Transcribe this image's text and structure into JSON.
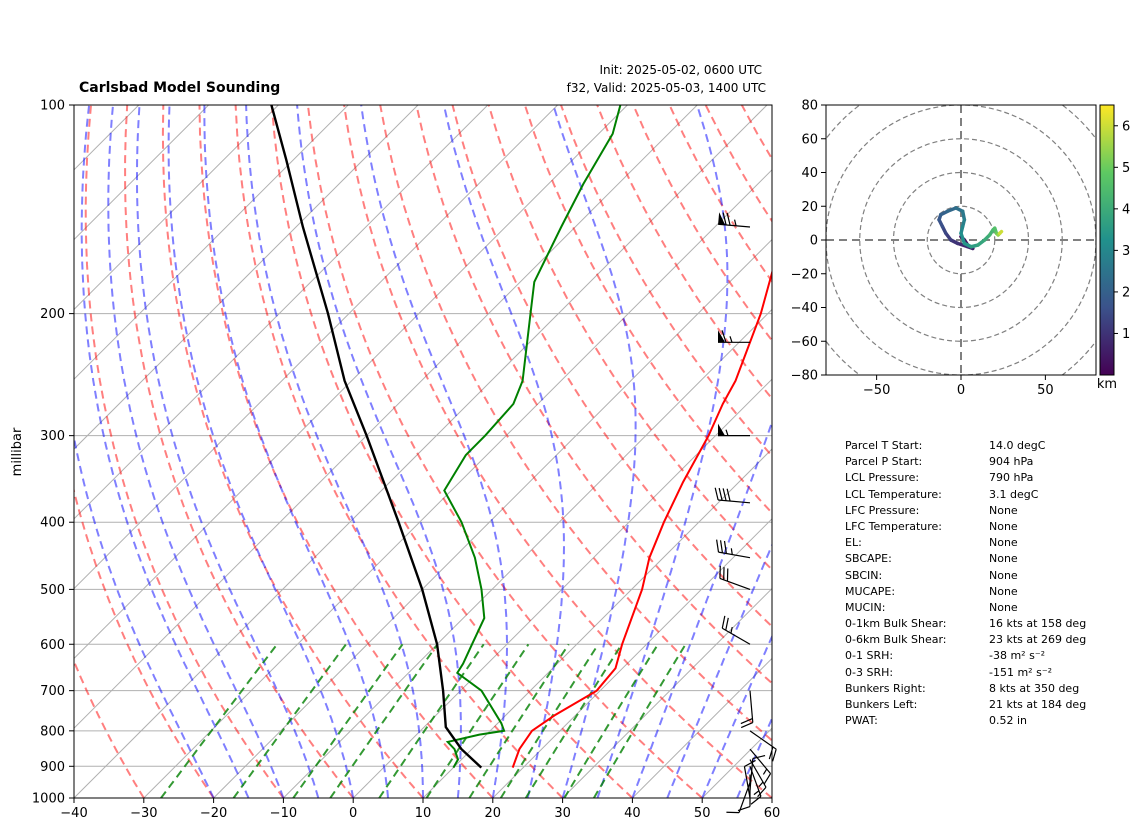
{
  "header": {
    "title": "Carlsbad Model Sounding",
    "init": "Init: 2025-05-02, 0600 UTC",
    "valid": "f32, Valid: 2025-05-03, 1400 UTC"
  },
  "skewt": {
    "ylabel": "millibar",
    "pressure_ticks": [
      100,
      200,
      300,
      400,
      500,
      600,
      700,
      800,
      900,
      1000
    ],
    "pressure_tick_labels": [
      "100",
      "200",
      "300",
      "400",
      "500",
      "600",
      "700",
      "800",
      "900",
      "1000"
    ],
    "temp_ticks": [
      -40,
      -30,
      -20,
      -10,
      0,
      10,
      20,
      30,
      40,
      50,
      60
    ],
    "temp_tick_labels": [
      "−40",
      "−30",
      "−20",
      "−10",
      "0",
      "10",
      "20",
      "30",
      "40",
      "50",
      "60"
    ]
  },
  "hodograph": {
    "x_tick_labels": [
      "−50",
      "0",
      "50"
    ],
    "y_tick_labels": [
      "80",
      "60",
      "40",
      "20",
      "0",
      "−20",
      "−40",
      "−60",
      "−80"
    ],
    "colorbar_ticks": [
      "6",
      "5",
      "4",
      "3",
      "2",
      "1"
    ],
    "colorbar_label": "km"
  },
  "stats": [
    {
      "label": "Parcel T Start:",
      "value": "14.0 degC"
    },
    {
      "label": "Parcel P Start:",
      "value": "904 hPa"
    },
    {
      "label": "LCL Pressure:",
      "value": "790 hPa"
    },
    {
      "label": "LCL Temperature:",
      "value": "3.1 degC"
    },
    {
      "label": "LFC Pressure:",
      "value": "None"
    },
    {
      "label": "LFC Temperature:",
      "value": "None"
    },
    {
      "label": "EL:",
      "value": "None"
    },
    {
      "label": "SBCAPE:",
      "value": "None"
    },
    {
      "label": "SBCIN:",
      "value": "None"
    },
    {
      "label": "MUCAPE:",
      "value": "None"
    },
    {
      "label": "MUCIN:",
      "value": "None"
    },
    {
      "label": "0-1km Bulk Shear:",
      "value": "16 kts at 158 deg"
    },
    {
      "label": "0-6km Bulk Shear:",
      "value": "23 kts at 269 deg"
    },
    {
      "label": "0-1 SRH:",
      "value": "-38 m² s⁻²"
    },
    {
      "label": "0-3 SRH:",
      "value": "-151 m² s⁻²"
    },
    {
      "label": "Bunkers Right:",
      "value": "8 kts at 350 deg"
    },
    {
      "label": "Bunkers Left:",
      "value": "21 kts at 184 deg"
    },
    {
      "label": "PWAT:",
      "value": "0.52 in"
    }
  ],
  "chart_data": [
    {
      "type": "line",
      "ylim": [
        1000,
        100
      ],
      "xlim": [
        -40,
        60
      ],
      "yscale": "log",
      "skew": true,
      "grid": true,
      "series": [
        {
          "id": "temperature",
          "color": "#ff0000",
          "points": [
            [
              904,
              18.5
            ],
            [
              850,
              16.8
            ],
            [
              800,
              16.0
            ],
            [
              760,
              17.0
            ],
            [
              700,
              19.5
            ],
            [
              650,
              19.0
            ],
            [
              600,
              16.5
            ],
            [
              500,
              11.5
            ],
            [
              450,
              8.0
            ],
            [
              400,
              5.0
            ],
            [
              350,
              2.0
            ],
            [
              300,
              -1.0
            ],
            [
              270,
              -3.5
            ],
            [
              250,
              -5.0
            ],
            [
              200,
              -11.0
            ],
            [
              150,
              -20.0
            ],
            [
              120,
              -29.0
            ],
            [
              100,
              -37.0
            ]
          ]
        },
        {
          "id": "dewpoint",
          "color": "#008000",
          "points": [
            [
              904,
              10.0
            ],
            [
              880,
              9.5
            ],
            [
              850,
              7.5
            ],
            [
              830,
              5.5
            ],
            [
              810,
              9.0
            ],
            [
              800,
              12.0
            ],
            [
              780,
              10.5
            ],
            [
              700,
              3.0
            ],
            [
              660,
              -3.0
            ],
            [
              640,
              -3.5
            ],
            [
              600,
              -5.0
            ],
            [
              550,
              -7.0
            ],
            [
              500,
              -11.5
            ],
            [
              450,
              -17.0
            ],
            [
              400,
              -24.0
            ],
            [
              360,
              -31.0
            ],
            [
              320,
              -33.0
            ],
            [
              300,
              -33.0
            ],
            [
              270,
              -33.5
            ],
            [
              250,
              -35.5
            ],
            [
              200,
              -44.0
            ],
            [
              180,
              -48.0
            ],
            [
              150,
              -52.0
            ],
            [
              130,
              -55.0
            ],
            [
              110,
              -58.0
            ],
            [
              100,
              -61.0
            ]
          ]
        },
        {
          "id": "parcel",
          "color": "#000000",
          "points": [
            [
              904,
              14.0
            ],
            [
              850,
              8.5
            ],
            [
              790,
              3.1
            ],
            [
              700,
              -2.5
            ],
            [
              600,
              -10.0
            ],
            [
              500,
              -20.0
            ],
            [
              400,
              -33.0
            ],
            [
              300,
              -50.0
            ],
            [
              250,
              -61.0
            ],
            [
              200,
              -73.0
            ],
            [
              150,
              -89.0
            ],
            [
              120,
              -101.0
            ],
            [
              100,
              -111.0
            ]
          ]
        }
      ]
    },
    {
      "type": "line",
      "xlim": [
        -80,
        80
      ],
      "ylim": [
        -80,
        80
      ],
      "grid": false,
      "colormap": "viridis",
      "colorbar_range_km": [
        0,
        6.5
      ],
      "hodograph": [
        [
          0,
          2
        ],
        [
          2,
          0
        ],
        [
          4,
          -3
        ],
        [
          7,
          -5
        ],
        [
          4,
          -4
        ],
        [
          -2,
          -2
        ],
        [
          -6,
          0
        ],
        [
          -9,
          4
        ],
        [
          -11,
          8
        ],
        [
          -13,
          12
        ],
        [
          -12,
          15
        ],
        [
          -8,
          17
        ],
        [
          -3,
          19
        ],
        [
          1,
          17
        ],
        [
          2,
          12
        ],
        [
          1,
          8
        ],
        [
          0,
          4
        ],
        [
          2,
          -2
        ],
        [
          6,
          -4
        ],
        [
          10,
          -3
        ],
        [
          14,
          0
        ],
        [
          17,
          3
        ],
        [
          19,
          6
        ],
        [
          20,
          7
        ],
        [
          21,
          4
        ],
        [
          22,
          3
        ],
        [
          23,
          4
        ],
        [
          24,
          5
        ]
      ],
      "heights_km": [
        0,
        0.2,
        0.4,
        0.6,
        0.8,
        1.0,
        1.2,
        1.4,
        1.6,
        1.8,
        2.0,
        2.2,
        2.4,
        2.6,
        2.8,
        3.0,
        3.2,
        3.4,
        3.6,
        3.8,
        4.0,
        4.2,
        4.4,
        4.6,
        5.0,
        5.5,
        6.0,
        6.3
      ]
    }
  ],
  "wind_barbs": [
    {
      "p": 1000,
      "speed": 10,
      "dir": 350
    },
    {
      "p": 975,
      "speed": 10,
      "dir": 5
    },
    {
      "p": 950,
      "speed": 10,
      "dir": 200
    },
    {
      "p": 925,
      "speed": 10,
      "dir": 180
    },
    {
      "p": 900,
      "speed": 15,
      "dir": 160
    },
    {
      "p": 880,
      "speed": 15,
      "dir": 150
    },
    {
      "p": 850,
      "speed": 15,
      "dir": 140
    },
    {
      "p": 800,
      "speed": 20,
      "dir": 125
    },
    {
      "p": 700,
      "speed": 20,
      "dir": 175
    },
    {
      "p": 600,
      "speed": 25,
      "dir": 300
    },
    {
      "p": 500,
      "speed": 30,
      "dir": 290
    },
    {
      "p": 450,
      "speed": 35,
      "dir": 280
    },
    {
      "p": 375,
      "speed": 40,
      "dir": 275
    },
    {
      "p": 300,
      "speed": 55,
      "dir": 270
    },
    {
      "p": 220,
      "speed": 65,
      "dir": 270
    },
    {
      "p": 150,
      "speed": 75,
      "dir": 275
    }
  ]
}
